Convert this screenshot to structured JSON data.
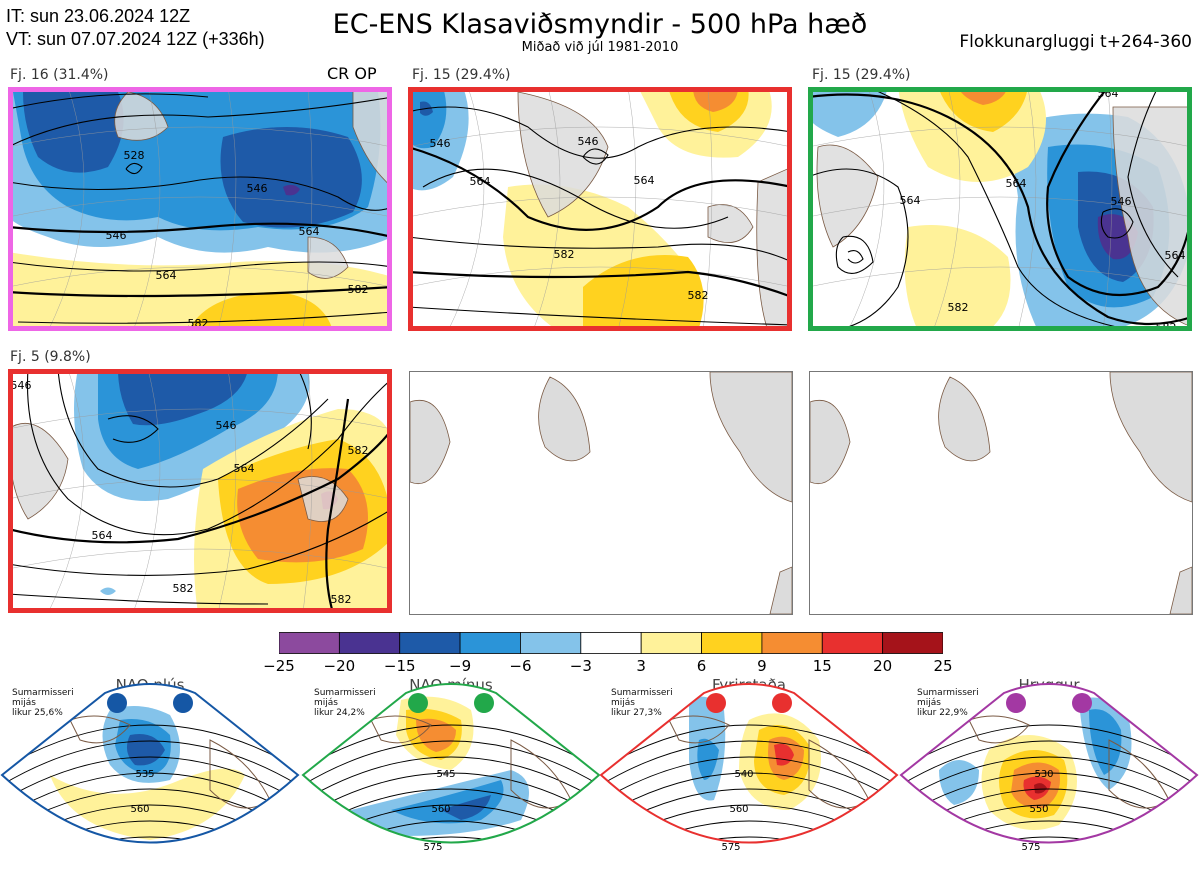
{
  "header": {
    "it": "IT: sun 23.06.2024 12Z",
    "vt": "VT: sun 07.07.2024 12Z  (+336h)",
    "title": "EC-ENS Klasaviðsmyndir - 500 hPa hæð",
    "subtitle": "Miðað við júl 1981-2010",
    "window": "Flokkunargluggi t+264-360"
  },
  "panels": [
    {
      "label": "Fj. 16 (31.4%)",
      "extra": "CR OP",
      "border": "#ee66e6",
      "pattern": "p1"
    },
    {
      "label": "Fj. 15 (29.4%)",
      "extra": "",
      "border": "#e8302f",
      "pattern": "p2"
    },
    {
      "label": "Fj. 15 (29.4%)",
      "extra": "",
      "border": "#22a84a",
      "pattern": "p3"
    },
    {
      "label": "Fj. 5 (9.8%)",
      "extra": "",
      "border": "#e8302f",
      "pattern": "p4"
    },
    {
      "label": "",
      "extra": "",
      "border": "",
      "pattern": "empty"
    },
    {
      "label": "",
      "extra": "",
      "border": "",
      "pattern": "empty"
    }
  ],
  "contour_labels": {
    "p1": [
      "528",
      "546",
      "546",
      "564",
      "564",
      "582",
      "582"
    ],
    "p2": [
      "546",
      "546",
      "564",
      "564",
      "582",
      "582"
    ],
    "p3": [
      "564",
      "564",
      "546",
      "564",
      "582",
      "564",
      "582"
    ],
    "p4": [
      "546",
      "546",
      "564",
      "564",
      "582",
      "582",
      "582"
    ]
  },
  "colorbar": {
    "colors": [
      "#8c4a9e",
      "#4a3391",
      "#1e5aa8",
      "#2b94d8",
      "#84c3ea",
      "#ffffff",
      "#fff29a",
      "#ffd21f",
      "#f58d32",
      "#e8302f",
      "#a5131a"
    ],
    "ticks": [
      "−25",
      "−20",
      "−15",
      "−9",
      "−6",
      "−3",
      "3",
      "6",
      "9",
      "15",
      "20",
      "25"
    ]
  },
  "regimes": [
    {
      "name": "NAO plús",
      "info": "Sumarmisseri\nmijás\nlikur 25,6%",
      "color": "#1557a5",
      "labels": [
        "535",
        "560"
      ]
    },
    {
      "name": "NAO mínus",
      "info": "Sumarmisseri\nmijás\nlikur 24,2%",
      "color": "#22a84a",
      "labels": [
        "545",
        "560",
        "575"
      ]
    },
    {
      "name": "Fyrirstaða",
      "info": "Sumarmisseri\nmijás\nlikur 27,3%",
      "color": "#e8302f",
      "labels": [
        "540",
        "560",
        "575"
      ]
    },
    {
      "name": "Hryggur",
      "info": "Sumarmisseri\nmijás\nlikur 22,9%",
      "color": "#a338a3",
      "labels": [
        "530",
        "550",
        "575"
      ]
    }
  ],
  "chart_data": {
    "type": "heatmap",
    "title": "EC-ENS Klasaviðsmyndir - 500 hPa hæð",
    "colorbar_ticks": [
      -25,
      -20,
      -15,
      -9,
      -6,
      -3,
      3,
      6,
      9,
      15,
      20,
      25
    ],
    "clusters": [
      {
        "label": "Fj. 16 (31.4%)",
        "members": 16,
        "percent": 31.4
      },
      {
        "label": "Fj. 15 (29.4%)",
        "members": 15,
        "percent": 29.4
      },
      {
        "label": "Fj. 15 (29.4%)",
        "members": 15,
        "percent": 29.4
      },
      {
        "label": "Fj. 5 (9.8%)",
        "members": 5,
        "percent": 9.8
      }
    ],
    "regimes": [
      {
        "name": "NAO plús",
        "probability": 25.6
      },
      {
        "name": "NAO mínus",
        "probability": 24.2
      },
      {
        "name": "Fyrirstaða",
        "probability": 27.3
      },
      {
        "name": "Hryggur",
        "probability": 22.9
      }
    ]
  }
}
